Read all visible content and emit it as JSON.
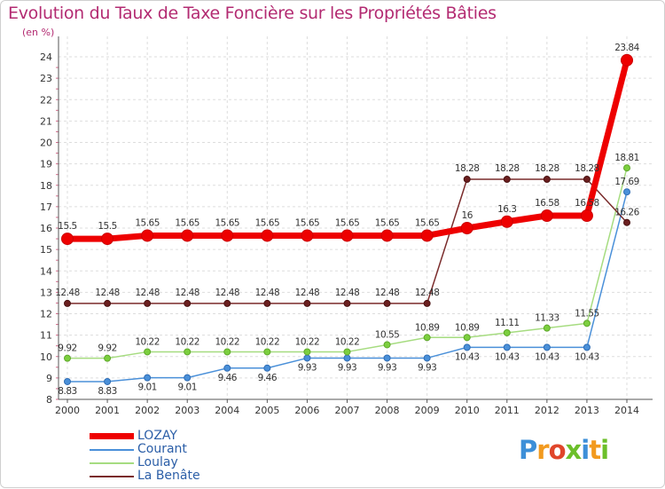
{
  "title": "Evolution du Taux de Taxe Foncière sur les Propriétés Bâties",
  "unit_label": "(en %)",
  "logo_text": "Proxiti",
  "chart_data": {
    "type": "line",
    "x": [
      "2000",
      "2001",
      "2002",
      "2003",
      "2004",
      "2005",
      "2006",
      "2007",
      "2008",
      "2009",
      "2010",
      "2011",
      "2012",
      "2013",
      "2014"
    ],
    "ylim": [
      8,
      24
    ],
    "yticks": [
      8,
      9,
      10,
      11,
      12,
      13,
      14,
      15,
      16,
      17,
      18,
      19,
      20,
      21,
      22,
      23,
      24
    ],
    "grid": true,
    "legend": "bottom-left",
    "series": [
      {
        "name": "Courant",
        "color": "#4a90d9",
        "values": [
          8.83,
          8.83,
          9.01,
          9.01,
          9.46,
          9.46,
          9.93,
          9.93,
          9.93,
          9.93,
          10.43,
          10.43,
          10.43,
          10.43,
          17.69
        ],
        "labels": [
          "8.83",
          "8.83",
          "9.01",
          "9.01",
          "9.46",
          "9.46",
          "9.93",
          "9.93",
          "9.93",
          "9.93",
          "10.43",
          "10.43",
          "10.43",
          "10.43",
          "17.69"
        ]
      },
      {
        "name": "Loulay",
        "color": "#8fd16a",
        "values": [
          9.92,
          9.92,
          10.22,
          10.22,
          10.22,
          10.22,
          10.22,
          10.22,
          10.55,
          10.89,
          10.89,
          11.11,
          11.33,
          11.55,
          18.81
        ],
        "labels": [
          "9.92",
          "9.92",
          "10.22",
          "10.22",
          "10.22",
          "10.22",
          "10.22",
          "10.22",
          "10.55",
          "10.89",
          "10.89",
          "11.11",
          "11.33",
          "11.55",
          "18.81"
        ]
      },
      {
        "name": "La Benâte",
        "color": "#7a2b2b",
        "values": [
          12.48,
          12.48,
          12.48,
          12.48,
          12.48,
          12.48,
          12.48,
          12.48,
          12.48,
          12.48,
          18.28,
          18.28,
          18.28,
          18.28,
          16.26
        ],
        "labels": [
          "12.48",
          "12.48",
          "12.48",
          "12.48",
          "12.48",
          "12.48",
          "12.48",
          "12.48",
          "12.48",
          "12.48",
          "18.28",
          "18.28",
          "18.28",
          "18.28",
          "16.26"
        ]
      },
      {
        "name": "LOZAY",
        "color": "#ee0000",
        "values": [
          15.5,
          15.5,
          15.65,
          15.65,
          15.65,
          15.65,
          15.65,
          15.65,
          15.65,
          15.65,
          16,
          16.3,
          16.58,
          16.58,
          23.84
        ],
        "labels": [
          "15.5",
          "15.5",
          "15.65",
          "15.65",
          "15.65",
          "15.65",
          "15.65",
          "15.65",
          "15.65",
          "15.65",
          "16",
          "16.3",
          "16.58",
          "16.58",
          "23.84"
        ]
      }
    ],
    "legend_order": [
      "LOZAY",
      "Courant",
      "Loulay",
      "La Benâte"
    ]
  }
}
